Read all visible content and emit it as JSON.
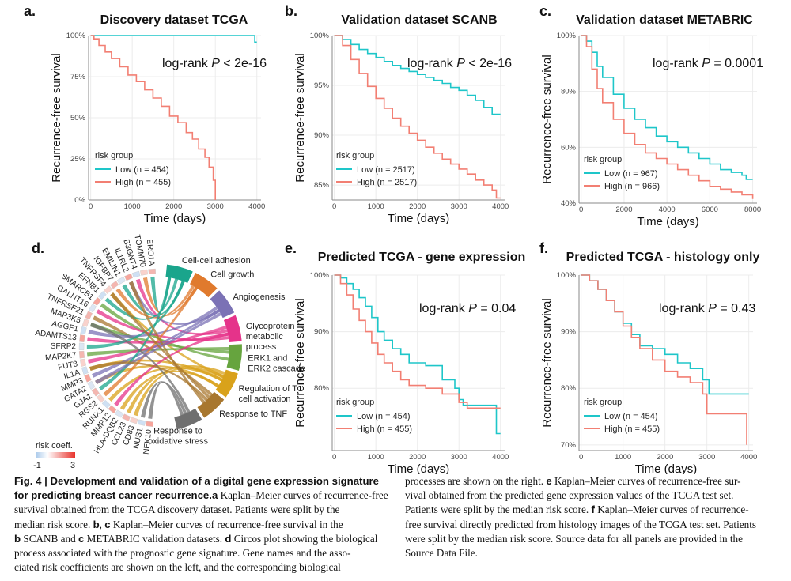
{
  "colors": {
    "low": "#1ec6c9",
    "high": "#f27f73"
  },
  "chart_data": [
    {
      "panel": "a.",
      "type": "line",
      "title": "Discovery dataset TCGA",
      "xlabel": "Time (days)",
      "ylabel": "Recurrence-free survival",
      "xlim": [
        -50,
        4100
      ],
      "ylim": [
        0,
        1
      ],
      "xticks": [
        0,
        1000,
        2000,
        3000,
        4000
      ],
      "xtick_labels": [
        "0",
        "1000",
        "2000",
        "3000",
        "4000"
      ],
      "yticks": [
        0,
        0.25,
        0.5,
        0.75,
        1.0
      ],
      "ytick_labels": [
        "0%",
        "25%",
        "50%",
        "75%",
        "100%"
      ],
      "stat_prefix": "log-rank ",
      "stat_p": "P",
      "stat_suffix": " < 2e-16",
      "legend_title": "risk group",
      "series": [
        {
          "name": "Low (n = 454)",
          "group": "low",
          "x": [
            0,
            3950,
            3950,
            4000
          ],
          "y": [
            1.0,
            1.0,
            0.96,
            0.96
          ]
        },
        {
          "name": "High (n = 455)",
          "group": "high",
          "x": [
            0,
            80,
            200,
            350,
            500,
            700,
            900,
            1100,
            1300,
            1500,
            1700,
            1900,
            2100,
            2300,
            2450,
            2600,
            2750,
            2850,
            2950,
            3000
          ],
          "y": [
            1.0,
            0.98,
            0.94,
            0.9,
            0.86,
            0.81,
            0.76,
            0.72,
            0.67,
            0.62,
            0.57,
            0.51,
            0.47,
            0.41,
            0.37,
            0.31,
            0.26,
            0.2,
            0.12,
            0.0
          ]
        }
      ]
    },
    {
      "panel": "b.",
      "type": "line",
      "title": "Validation dataset SCANB",
      "xlabel": "Time (days)",
      "ylabel": "Recurrence-free survival",
      "xlim": [
        -50,
        4100
      ],
      "ylim": [
        0.835,
        1.0
      ],
      "xticks": [
        0,
        1000,
        2000,
        3000,
        4000
      ],
      "xtick_labels": [
        "0",
        "1000",
        "2000",
        "3000",
        "4000"
      ],
      "yticks": [
        0.85,
        0.9,
        0.95,
        1.0
      ],
      "ytick_labels": [
        "85%",
        "90%",
        "95%",
        "100%"
      ],
      "stat_prefix": "log-rank ",
      "stat_p": "P",
      "stat_suffix": " < 2e-16",
      "legend_title": "risk group",
      "series": [
        {
          "name": "Low (n = 2517)",
          "group": "low",
          "x": [
            0,
            200,
            400,
            600,
            800,
            1000,
            1200,
            1400,
            1600,
            1800,
            2000,
            2200,
            2400,
            2600,
            2800,
            3000,
            3200,
            3400,
            3600,
            3800,
            4000
          ],
          "y": [
            1.0,
            0.996,
            0.991,
            0.986,
            0.982,
            0.978,
            0.974,
            0.97,
            0.967,
            0.964,
            0.961,
            0.958,
            0.955,
            0.952,
            0.948,
            0.945,
            0.94,
            0.935,
            0.928,
            0.921,
            0.921
          ]
        },
        {
          "name": "High (n = 2517)",
          "group": "high",
          "x": [
            0,
            200,
            400,
            600,
            800,
            1000,
            1200,
            1400,
            1600,
            1800,
            2000,
            2200,
            2400,
            2600,
            2800,
            3000,
            3200,
            3400,
            3600,
            3800,
            3900,
            4000
          ],
          "y": [
            1.0,
            0.99,
            0.976,
            0.962,
            0.949,
            0.937,
            0.927,
            0.917,
            0.909,
            0.902,
            0.895,
            0.888,
            0.882,
            0.876,
            0.871,
            0.866,
            0.861,
            0.855,
            0.85,
            0.845,
            0.837,
            0.837
          ]
        }
      ]
    },
    {
      "panel": "c.",
      "type": "line",
      "title": "Validation dataset METABRIC",
      "xlabel": "Time (days)",
      "ylabel": "Recurrence-free survival",
      "xlim": [
        -100,
        8200
      ],
      "ylim": [
        0.4,
        1.0
      ],
      "xticks": [
        0,
        2000,
        4000,
        6000,
        8000
      ],
      "xtick_labels": [
        "0",
        "2000",
        "4000",
        "6000",
        "8000"
      ],
      "yticks": [
        0.4,
        0.6,
        0.8,
        1.0
      ],
      "ytick_labels": [
        "40%",
        "60%",
        "80%",
        "100%"
      ],
      "stat_prefix": "log-rank ",
      "stat_p": "P",
      "stat_suffix": " = 0.0001",
      "legend_title": "risk group",
      "series": [
        {
          "name": "Low (n = 967)",
          "group": "low",
          "x": [
            0,
            250,
            500,
            750,
            1000,
            1500,
            2000,
            2500,
            3000,
            3500,
            4000,
            4500,
            5000,
            5500,
            6000,
            6500,
            7000,
            7500,
            7700,
            8000
          ],
          "y": [
            1.0,
            0.98,
            0.94,
            0.89,
            0.85,
            0.79,
            0.74,
            0.7,
            0.67,
            0.64,
            0.62,
            0.6,
            0.58,
            0.56,
            0.54,
            0.52,
            0.51,
            0.5,
            0.485,
            0.485
          ]
        },
        {
          "name": "High (n = 966)",
          "group": "high",
          "x": [
            0,
            250,
            500,
            750,
            1000,
            1500,
            2000,
            2500,
            3000,
            3500,
            4000,
            4500,
            5000,
            5500,
            6000,
            6500,
            7000,
            7500,
            8000
          ],
          "y": [
            1.0,
            0.96,
            0.88,
            0.81,
            0.76,
            0.7,
            0.65,
            0.61,
            0.58,
            0.56,
            0.54,
            0.52,
            0.5,
            0.48,
            0.46,
            0.45,
            0.44,
            0.43,
            0.415
          ]
        }
      ]
    },
    {
      "panel": "e.",
      "type": "line",
      "title": "Predicted TCGA - gene expression",
      "xlabel": "Time (days)",
      "ylabel": "Recurrence-free survival",
      "xlim": [
        -50,
        4100
      ],
      "ylim": [
        0.69,
        1.0
      ],
      "xticks": [
        0,
        1000,
        2000,
        3000,
        4000
      ],
      "xtick_labels": [
        "0",
        "1000",
        "2000",
        "3000",
        "4000"
      ],
      "yticks": [
        0.8,
        0.9,
        1.0
      ],
      "ytick_labels": [
        "80%",
        "90%",
        "100%"
      ],
      "stat_prefix": "log-rank ",
      "stat_p": "P",
      "stat_suffix": " = 0.04",
      "legend_title": "risk group",
      "series": [
        {
          "name": "Low (n = 454)",
          "group": "low",
          "x": [
            0,
            150,
            300,
            450,
            600,
            750,
            900,
            1050,
            1200,
            1400,
            1600,
            1800,
            2200,
            2600,
            2900,
            3000,
            3100,
            3500,
            3900,
            4000
          ],
          "y": [
            1.0,
            0.995,
            0.985,
            0.975,
            0.96,
            0.945,
            0.925,
            0.9,
            0.885,
            0.87,
            0.86,
            0.845,
            0.84,
            0.815,
            0.8,
            0.78,
            0.77,
            0.77,
            0.72,
            0.72
          ]
        },
        {
          "name": "High (n = 455)",
          "group": "high",
          "x": [
            0,
            150,
            300,
            450,
            600,
            750,
            900,
            1050,
            1200,
            1400,
            1600,
            1800,
            2200,
            2600,
            3000,
            3200,
            3600,
            4000
          ],
          "y": [
            1.0,
            0.985,
            0.965,
            0.94,
            0.92,
            0.9,
            0.88,
            0.86,
            0.845,
            0.83,
            0.815,
            0.805,
            0.8,
            0.79,
            0.775,
            0.765,
            0.765,
            0.765
          ]
        }
      ]
    },
    {
      "panel": "f.",
      "type": "line",
      "title": "Predicted TCGA - histology only",
      "xlabel": "Time (days)",
      "ylabel": "Recurrence-free survival",
      "xlim": [
        -50,
        4100
      ],
      "ylim": [
        0.69,
        1.0
      ],
      "xticks": [
        0,
        1000,
        2000,
        3000,
        4000
      ],
      "xtick_labels": [
        "0",
        "1000",
        "2000",
        "3000",
        "4000"
      ],
      "yticks": [
        0.7,
        0.8,
        0.9,
        1.0
      ],
      "ytick_labels": [
        "70%",
        "80%",
        "90%",
        "100%"
      ],
      "stat_prefix": "log-rank ",
      "stat_p": "P",
      "stat_suffix": " = 0.43",
      "legend_title": "risk group",
      "series": [
        {
          "name": "Low (n = 454)",
          "group": "low",
          "x": [
            0,
            200,
            400,
            600,
            800,
            1000,
            1200,
            1400,
            1700,
            2000,
            2300,
            2600,
            2900,
            3050,
            3500,
            3900,
            4000
          ],
          "y": [
            1.0,
            0.99,
            0.975,
            0.955,
            0.935,
            0.915,
            0.895,
            0.875,
            0.87,
            0.86,
            0.845,
            0.835,
            0.815,
            0.79,
            0.79,
            0.79,
            0.79
          ]
        },
        {
          "name": "High (n = 455)",
          "group": "high",
          "x": [
            0,
            200,
            400,
            600,
            800,
            1000,
            1200,
            1400,
            1700,
            2000,
            2300,
            2600,
            2900,
            3000,
            3500,
            3900,
            3950
          ],
          "y": [
            1.0,
            0.99,
            0.975,
            0.955,
            0.935,
            0.91,
            0.89,
            0.87,
            0.85,
            0.83,
            0.82,
            0.81,
            0.79,
            0.755,
            0.755,
            0.755,
            0.7
          ]
        }
      ]
    }
  ],
  "circos": {
    "panel": "d.",
    "genes": [
      "ERO1A",
      "TOMM70",
      "B3GNT4",
      "IL1RL2",
      "EMILIN1",
      "IGFBP7",
      "TNFRSF4",
      "EFNB1",
      "SMARCB1",
      "GALNT16",
      "TNFRSF21",
      "MAP3K5",
      "AGGF1",
      "ADAMTS13",
      "SFRP2",
      "MAP2K7",
      "FUT8",
      "IL1A",
      "MMP3",
      "GATA2",
      "GJA1",
      "RGS2",
      "RUNX1",
      "MMP12",
      "HLA-DQB2",
      "CCL23",
      "CD83",
      "NUS1",
      "NEK10"
    ],
    "processes": [
      {
        "label": [
          "Cell-cell adhesion"
        ],
        "color": "#1aa58c"
      },
      {
        "label": [
          "Cell growth"
        ],
        "color": "#e07a2d"
      },
      {
        "label": [
          "Angiogenesis"
        ],
        "color": "#7b72b5"
      },
      {
        "label": [
          "Glycoprotein",
          "metabolic",
          "process"
        ],
        "color": "#e5338a"
      },
      {
        "label": [
          "ERK1 and",
          "ERK2 cascade"
        ],
        "color": "#66a43e"
      },
      {
        "label": [
          "Regulation of T",
          "cell activation"
        ],
        "color": "#d9a21b"
      },
      {
        "label": [
          "Response to TNF"
        ],
        "color": "#a8772f"
      },
      {
        "label": [
          "Response to",
          "oxidative stress"
        ],
        "color": "#6f6f6f"
      }
    ],
    "risk_legend": {
      "title": "risk coeff.",
      "min": "-1",
      "max": "3"
    }
  },
  "caption": {
    "fig": "Fig. 4",
    "bar": " | ",
    "bold_title": "Development and validation of a digital gene expression signature for predicting breast cancer recurrence.",
    "left_lines": [
      " Kaplan–Meier curves of recurrence-free",
      "survival obtained from the TCGA discovery dataset. Patients were split by the",
      "median risk score. ",
      " Kaplan–Meier curves of recurrence-free survival in the",
      " SCANB and ",
      " METABRIC validation datasets. ",
      " Circos plot showing the biological",
      "process associated with the prognostic gene signature. Gene names and the asso-",
      "ciated risk coefficients are shown on the left, and the corresponding biological"
    ],
    "right_lines": [
      "processes are shown on the right. ",
      " Kaplan–Meier curves of recurrence-free sur-",
      "vival obtained from the predicted gene expression values of the TCGA test set.",
      "Patients were split by the median risk score. ",
      " Kaplan–Meier curves of recurrence-",
      "free survival directly predicted from histology images of the TCGA test set. Patients",
      "were split by the median risk score. Source data for all panels are provided in the",
      "Source Data File."
    ],
    "letters": {
      "a": "a",
      "b": "b",
      "c": "c",
      "d": "d",
      "e": "e",
      "f": "f",
      "bc_sep": ", "
    }
  }
}
